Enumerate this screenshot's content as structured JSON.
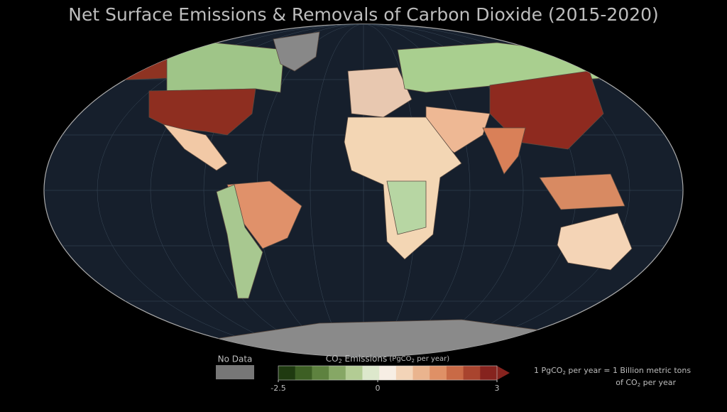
{
  "title": "Net Surface Emissions & Removals of Carbon Dioxide (2015-2020)",
  "legend": {
    "no_data": "No Data",
    "title": [
      "CO",
      "2",
      "Emissions",
      "(PgCO",
      "2",
      "per year)"
    ],
    "lim": [
      -2.5,
      3
    ],
    "ticks": [
      -2.5,
      0,
      3
    ],
    "colors": [
      "#1f3a10",
      "#3d5f24",
      "#5e823f",
      "#86a765",
      "#b3cc94",
      "#dde8cc",
      "#f7eee4",
      "#f3d4b8",
      "#eab48e",
      "#df9066",
      "#c96a46",
      "#a9442e",
      "#86231e"
    ],
    "note": [
      [
        "1 PgCO",
        "2",
        " per year = 1 Billion metric tons"
      ],
      [
        "of CO",
        "2",
        " per year"
      ]
    ]
  }
}
